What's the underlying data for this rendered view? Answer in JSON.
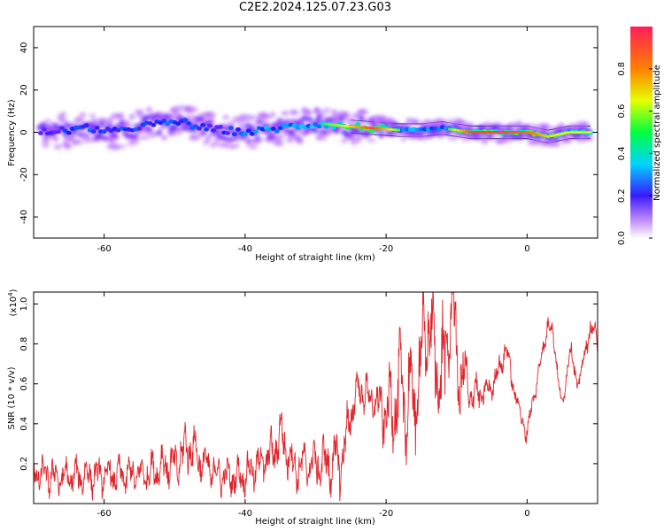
{
  "title": "C2E2.2024.125.07.23.G03",
  "colors": {
    "series": "#e0242a",
    "frame": "#000000"
  },
  "chart_data": [
    {
      "type": "heatmap",
      "xlabel": "Height of straight line (km)",
      "ylabel": "Frequency (Hz)",
      "xlim": [
        -70,
        10
      ],
      "ylim": [
        -50,
        50
      ],
      "x_ticks": [
        -60,
        -40,
        -20,
        0
      ],
      "y_ticks": [
        -40,
        -20,
        0,
        20,
        40
      ],
      "colorbar": {
        "label": "Normalized spectral amplitude",
        "range": [
          0,
          1
        ],
        "ticks": [
          "0.0",
          "0.2",
          "0.4",
          "0.6",
          "0.8"
        ],
        "tick_values": [
          0,
          0.2,
          0.4,
          0.6,
          0.8
        ],
        "colormap": [
          "#ffffff",
          "#9a33ff",
          "#1a1aff",
          "#00d4ff",
          "#00ff40",
          "#e6ff00",
          "#ff8000",
          "#ff1e5a"
        ]
      },
      "ridge": [
        {
          "x": -69,
          "y": 0,
          "amp": 0.35
        },
        {
          "x": -65,
          "y": 1,
          "amp": 0.45
        },
        {
          "x": -62,
          "y": 2,
          "amp": 0.5
        },
        {
          "x": -58,
          "y": 0,
          "amp": 0.45
        },
        {
          "x": -55,
          "y": 3,
          "amp": 0.45
        },
        {
          "x": -52,
          "y": 4,
          "amp": 0.45
        },
        {
          "x": -49,
          "y": 5,
          "amp": 0.5
        },
        {
          "x": -46,
          "y": 2,
          "amp": 0.45
        },
        {
          "x": -43,
          "y": 1,
          "amp": 0.4
        },
        {
          "x": -40,
          "y": 0,
          "amp": 0.5
        },
        {
          "x": -37,
          "y": 1,
          "amp": 0.55
        },
        {
          "x": -33,
          "y": 3,
          "amp": 0.55
        },
        {
          "x": -29,
          "y": 4,
          "amp": 0.6
        },
        {
          "x": -26,
          "y": 3,
          "amp": 0.7
        },
        {
          "x": -22,
          "y": 2,
          "amp": 0.95
        },
        {
          "x": -18,
          "y": 1,
          "amp": 0.6
        },
        {
          "x": -15,
          "y": 1,
          "amp": 0.55
        },
        {
          "x": -12,
          "y": 2,
          "amp": 0.5
        },
        {
          "x": -8,
          "y": 0,
          "amp": 0.95
        },
        {
          "x": -4,
          "y": 0,
          "amp": 0.95
        },
        {
          "x": 0,
          "y": 0,
          "amp": 0.9
        },
        {
          "x": 3,
          "y": -2,
          "amp": 0.75
        },
        {
          "x": 6,
          "y": 0,
          "amp": 0.7
        },
        {
          "x": 8,
          "y": 0,
          "amp": 0.7
        }
      ]
    },
    {
      "type": "line",
      "xlabel": "Height of straight line (km)",
      "ylabel": "SNR (10 * v/v)",
      "y_multiplier_label": "(x10",
      "y_multiplier_exponent": "4",
      "y_multiplier_close": ")",
      "xlim": [
        -70,
        10
      ],
      "ylim": [
        0,
        1.06
      ],
      "x_ticks": [
        -60,
        -40,
        -20,
        0
      ],
      "y_ticks": [
        0.2,
        0.4,
        0.6,
        0.8,
        1.0
      ],
      "y_tick_labels": [
        "0.2",
        "0.4",
        "0.6",
        "0.8",
        "1.0"
      ],
      "series": [
        {
          "x": [
            -70,
            -66,
            -62,
            -58,
            -54,
            -51,
            -50,
            -48,
            -46,
            -44,
            -42,
            -40,
            -38,
            -36,
            -35,
            -33,
            -31,
            -29,
            -27,
            -26,
            -25,
            -24,
            -22,
            -20,
            -18,
            -16,
            -15,
            -14,
            -12,
            -10.5,
            -10,
            -8,
            -6,
            -4.5,
            -3,
            -2,
            -1,
            0,
            1,
            2,
            3,
            4,
            5,
            6,
            7,
            8,
            9,
            10
          ],
          "y": [
            0.15,
            0.13,
            0.14,
            0.14,
            0.15,
            0.2,
            0.18,
            0.3,
            0.2,
            0.15,
            0.13,
            0.14,
            0.2,
            0.25,
            0.35,
            0.18,
            0.2,
            0.2,
            0.2,
            0.25,
            0.45,
            0.58,
            0.52,
            0.45,
            0.55,
            0.5,
            0.75,
            0.9,
            0.6,
            1.05,
            0.7,
            0.55,
            0.55,
            0.62,
            0.78,
            0.6,
            0.45,
            0.35,
            0.55,
            0.72,
            0.92,
            0.78,
            0.45,
            0.8,
            0.6,
            0.7,
            0.9,
            0.8
          ],
          "amplitude": [
            0.08,
            0.08,
            0.08,
            0.08,
            0.08,
            0.1,
            0.1,
            0.12,
            0.1,
            0.08,
            0.08,
            0.08,
            0.1,
            0.1,
            0.12,
            0.1,
            0.1,
            0.12,
            0.15,
            0.15,
            0.12,
            0.08,
            0.1,
            0.15,
            0.25,
            0.3,
            0.25,
            0.2,
            0.3,
            0.15,
            0.25,
            0.1,
            0.06,
            0.06,
            0.06,
            0.05,
            0.05,
            0.05,
            0.05,
            0.05,
            0.05,
            0.05,
            0.05,
            0.05,
            0.05,
            0.05,
            0.05,
            0.05
          ]
        }
      ]
    }
  ]
}
